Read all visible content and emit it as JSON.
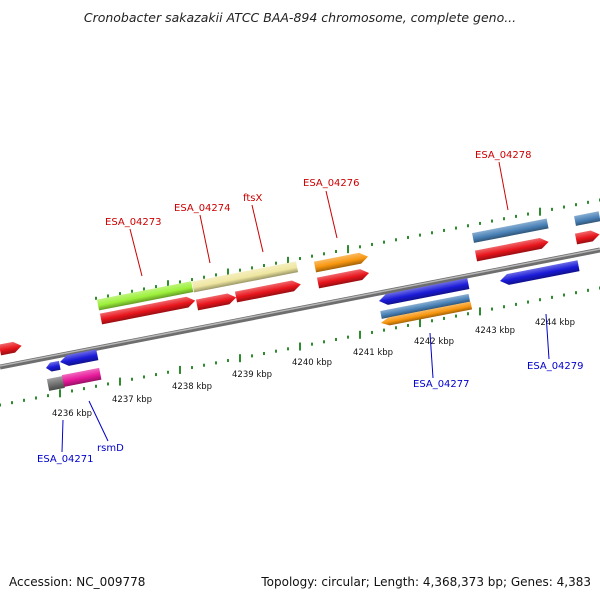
{
  "title": "Cronobacter sakazakii ATCC BAA-894 chromosome, complete geno...",
  "footer": {
    "accession": "Accession: NC_009778",
    "summary": "Topology: circular; Length: 4,368,373 bp; Genes: 4,383"
  },
  "colors": {
    "backbone": "#808080",
    "tick": "#2e8b2e",
    "label_top": "#cc0000",
    "label_bottom": "#0000cc",
    "cds": "#e8151c",
    "cds_blue": "#1a1ad8",
    "gene_lime": "#9cf03a",
    "gene_khaki": "#efe6a0",
    "gene_orange": "#f8960e",
    "gene_steel": "#4a82b8",
    "gene_gray": "#707070",
    "gene_magenta": "#e8189a"
  },
  "scale_labels": [
    "4236 kbp",
    "4237 kbp",
    "4238 kbp",
    "4239 kbp",
    "4240 kbp",
    "4241 kbp",
    "4242 kbp",
    "4243 kbp",
    "4244 kbp"
  ],
  "top_labels": [
    "ESA_04273",
    "ESA_04274",
    "ftsX",
    "ESA_04276",
    "ESA_04278"
  ],
  "bottom_labels": [
    "ESA_04271",
    "rsmD",
    "ESA_04277",
    "ESA_04279"
  ]
}
